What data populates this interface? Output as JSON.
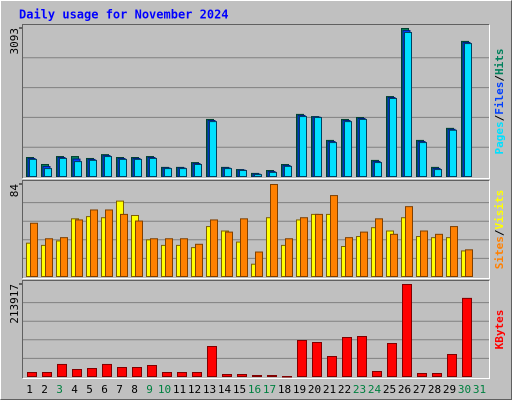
{
  "title": "Daily usage for November 2024",
  "legend_separator": "/",
  "chart_data": [
    {
      "type": "bar",
      "ylim": [
        0,
        3093
      ],
      "yticks": [
        3093
      ],
      "series": [
        {
          "name": "Hits",
          "color": "#00805c",
          "values": [
            415,
            270,
            435,
            435,
            395,
            475,
            415,
            415,
            435,
            210,
            210,
            310,
            1205,
            210,
            165,
            85,
            145,
            270,
            1310,
            1265,
            770,
            1205,
            1245,
            355,
            1680,
            3093,
            770,
            210,
            1020,
            2825,
            null
          ]
        },
        {
          "name": "Files",
          "color": "#0040ff",
          "values": [
            395,
            228,
            415,
            383,
            375,
            455,
            395,
            395,
            415,
            198,
            198,
            290,
            1183,
            198,
            155,
            72,
            125,
            250,
            1288,
            1255,
            748,
            1183,
            1225,
            333,
            1660,
            3050,
            748,
            188,
            1000,
            2803,
            null
          ]
        },
        {
          "name": "Pages",
          "color": "#00e0ff",
          "values": [
            375,
            185,
            395,
            330,
            355,
            435,
            375,
            375,
            395,
            185,
            185,
            270,
            1160,
            185,
            145,
            60,
            105,
            230,
            1265,
            1245,
            725,
            1160,
            1205,
            310,
            1640,
            3010,
            725,
            165,
            980,
            2780,
            null
          ]
        }
      ]
    },
    {
      "type": "bar",
      "ylim": [
        0,
        84
      ],
      "yticks": [
        84
      ],
      "series": [
        {
          "name": "Visits",
          "color": "#ffff00",
          "values": [
            31,
            29,
            33,
            53,
            55,
            54,
            69,
            56,
            34,
            29,
            29,
            27,
            46,
            42,
            32,
            12,
            54,
            29,
            52,
            57,
            57,
            28,
            37,
            45,
            42,
            54,
            37,
            36,
            36,
            24,
            null
          ]
        },
        {
          "name": "Sites",
          "color": "#ff8000",
          "values": [
            49,
            35,
            36,
            52,
            61,
            61,
            57,
            51,
            35,
            35,
            35,
            30,
            52,
            41,
            53,
            23,
            84,
            35,
            54,
            57,
            74,
            36,
            41,
            53,
            39,
            64,
            42,
            39,
            46,
            25,
            null
          ]
        }
      ]
    },
    {
      "type": "bar",
      "ylim": [
        0,
        213917
      ],
      "yticks": [
        213917
      ],
      "categories": [
        "1",
        "2",
        "3",
        "4",
        "5",
        "6",
        "7",
        "8",
        "9",
        "10",
        "11",
        "12",
        "13",
        "14",
        "15",
        "16",
        "17",
        "18",
        "19",
        "20",
        "21",
        "22",
        "23",
        "24",
        "25",
        "26",
        "27",
        "28",
        "29",
        "30",
        "31"
      ],
      "category_colors": [
        "#000000",
        "#000000",
        "#008040",
        "#000000",
        "#000000",
        "#000000",
        "#000000",
        "#000000",
        "#008040",
        "#008040",
        "#000000",
        "#000000",
        "#000000",
        "#000000",
        "#000000",
        "#008040",
        "#008040",
        "#000000",
        "#000000",
        "#000000",
        "#000000",
        "#000000",
        "#008040",
        "#008040",
        "#000000",
        "#000000",
        "#000000",
        "#000000",
        "#000000",
        "#008040",
        "#008040"
      ],
      "series": [
        {
          "name": "KBytes",
          "color": "#ff0000",
          "values": [
            11500,
            11500,
            30000,
            18400,
            20700,
            30000,
            23000,
            23000,
            27600,
            11500,
            11500,
            11500,
            71300,
            6900,
            6900,
            4600,
            4600,
            2300,
            85100,
            80500,
            48300,
            92000,
            94300,
            13800,
            78200,
            213917,
            9200,
            9200,
            52900,
            182000,
            null
          ]
        }
      ]
    }
  ]
}
